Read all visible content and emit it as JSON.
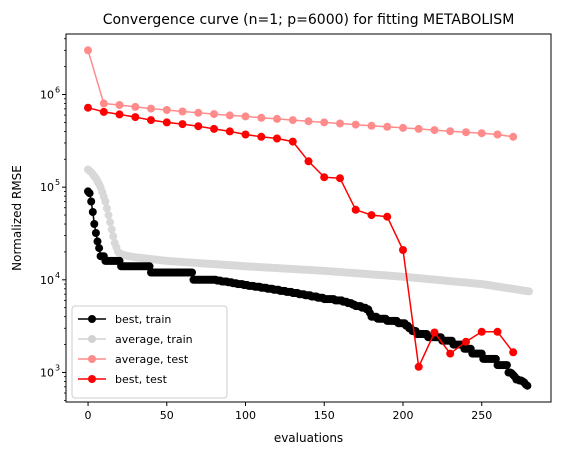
{
  "chart_data": {
    "type": "line",
    "title": "Convergence curve (n=1; p=6000) for fitting METABOLISM",
    "xlabel": "evaluations",
    "ylabel": "Normalized RMSE",
    "xscale": "linear",
    "yscale": "log",
    "xlim": [
      -14,
      294
    ],
    "ylim": [
      480,
      4500000
    ],
    "x_ticks": [
      0,
      50,
      100,
      150,
      200,
      250
    ],
    "x_tick_labels": [
      "0",
      "50",
      "100",
      "150",
      "200",
      "250"
    ],
    "y_ticks": [
      1000,
      10000,
      100000,
      1000000
    ],
    "y_tick_labels": [
      "10",
      "10",
      "10",
      "10"
    ],
    "y_tick_exponents": [
      "3",
      "4",
      "5",
      "6"
    ],
    "grid": false,
    "legend_position": "lower-left",
    "series": [
      {
        "name": "best, train",
        "color": "#000000",
        "alpha": 1.0,
        "marker": "o",
        "x_start": 0,
        "x_step": 1,
        "anchors": [
          [
            0,
            90000
          ],
          [
            1,
            85000
          ],
          [
            2,
            70000
          ],
          [
            3,
            55000
          ],
          [
            4,
            40000
          ],
          [
            5,
            32000
          ],
          [
            6,
            25000
          ],
          [
            7,
            22000
          ],
          [
            8,
            18000
          ],
          [
            12,
            16500
          ],
          [
            20,
            15000
          ],
          [
            40,
            13000
          ],
          [
            60,
            11500
          ],
          [
            80,
            10000
          ],
          [
            100,
            8800
          ],
          [
            120,
            7800
          ],
          [
            135,
            7000
          ],
          [
            150,
            6300
          ],
          [
            160,
            6000
          ],
          [
            170,
            5300
          ],
          [
            178,
            4800
          ],
          [
            180,
            4000
          ],
          [
            190,
            3700
          ],
          [
            200,
            3400
          ],
          [
            210,
            2600
          ],
          [
            222,
            2400
          ],
          [
            238,
            1900
          ],
          [
            250,
            1500
          ],
          [
            265,
            1200
          ],
          [
            272,
            850
          ],
          [
            276,
            800
          ],
          [
            279,
            720
          ]
        ],
        "values": []
      },
      {
        "name": "average, train",
        "color": "#808080",
        "alpha": 0.3,
        "marker": "o",
        "x_start": 0,
        "x_step": 1,
        "anchors": [
          [
            0,
            155000
          ],
          [
            2,
            145000
          ],
          [
            5,
            125000
          ],
          [
            8,
            100000
          ],
          [
            11,
            70000
          ],
          [
            13,
            50000
          ],
          [
            15,
            35000
          ],
          [
            17,
            25000
          ],
          [
            19,
            20000
          ],
          [
            22,
            18500
          ],
          [
            30,
            17500
          ],
          [
            50,
            16000
          ],
          [
            100,
            14000
          ],
          [
            150,
            12500
          ],
          [
            200,
            10800
          ],
          [
            250,
            9000
          ],
          [
            280,
            7500
          ]
        ],
        "values": []
      },
      {
        "name": "average, test",
        "color": "#ff0000",
        "alpha": 0.45,
        "marker": "o",
        "x": [
          0,
          10,
          20,
          30,
          40,
          50,
          60,
          70,
          80,
          90,
          100,
          110,
          120,
          130,
          140,
          150,
          160,
          170,
          180,
          190,
          200,
          210,
          220,
          230,
          240,
          250,
          260,
          270
        ],
        "values": [
          3000000,
          800000,
          770000,
          735000,
          705000,
          680000,
          655000,
          635000,
          615000,
          595000,
          580000,
          560000,
          545000,
          530000,
          515000,
          500000,
          487000,
          473000,
          460000,
          448000,
          436000,
          425000,
          413000,
          402000,
          392000,
          382000,
          370000,
          350000
        ]
      },
      {
        "name": "best, test",
        "color": "#ff0000",
        "alpha": 1.0,
        "marker": "o",
        "x": [
          0,
          10,
          20,
          30,
          40,
          50,
          60,
          70,
          80,
          90,
          100,
          110,
          120,
          130,
          140,
          150,
          160,
          170,
          180,
          190,
          200,
          210,
          220,
          230,
          240,
          250,
          260,
          270
        ],
        "values": [
          720000,
          650000,
          610000,
          570000,
          530000,
          500000,
          480000,
          455000,
          425000,
          400000,
          370000,
          350000,
          335000,
          310000,
          190000,
          128000,
          125000,
          57000,
          50000,
          48000,
          21000,
          1150,
          2700,
          1600,
          2150,
          2750,
          2750,
          1650
        ]
      }
    ]
  }
}
